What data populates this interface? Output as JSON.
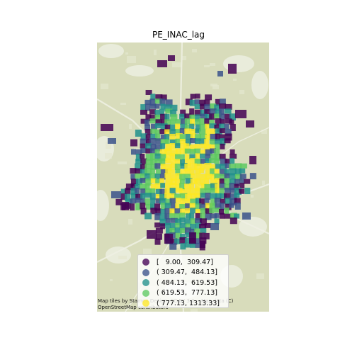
{
  "title": "PE_INAC_lag",
  "colors": {
    "class1": "#440154",
    "class2": "#3b528b",
    "class3": "#21918c",
    "class4": "#5ec962",
    "class5": "#fde725",
    "basemap": "#d8dcbb",
    "basemap_light": "#e4e7cf",
    "roads": "#eef0e2"
  },
  "legend": {
    "items": [
      {
        "label": "[   9.00,  309.47]",
        "color": "#440154"
      },
      {
        "label": "( 309.47,  484.13]",
        "color": "#3b528b"
      },
      {
        "label": "( 484.13,  619.53]",
        "color": "#21918c"
      },
      {
        "label": "( 619.53,  777.13]",
        "color": "#5ec962"
      },
      {
        "label": "( 777.13, 1313.33]",
        "color": "#fde725"
      }
    ]
  },
  "attribution": {
    "line1": "Map tiles by Stamen Design, CC BY 3.0 -- Map data (C)",
    "line2": "OpenStreetMap contributors"
  }
}
